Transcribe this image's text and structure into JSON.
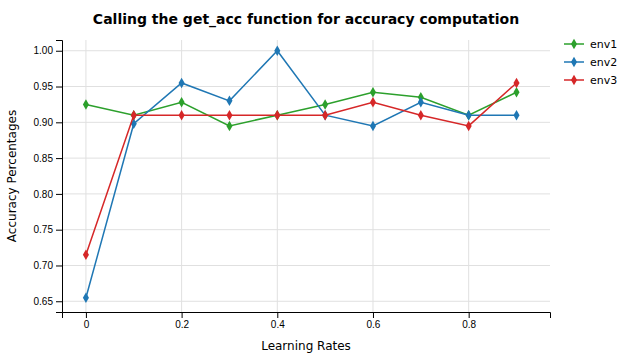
{
  "chart_data": {
    "type": "line",
    "title": "Calling the get_acc function for accuracy computation",
    "xlabel": "Learning Rates",
    "ylabel": "Accuracy Percentages",
    "x": [
      0.0,
      0.1,
      0.2,
      0.3,
      0.4,
      0.5,
      0.6,
      0.7,
      0.8,
      0.9
    ],
    "series": [
      {
        "name": "env1",
        "color": "#2ca02c",
        "marker": "diamond",
        "values": [
          0.925,
          0.91,
          0.928,
          0.895,
          0.91,
          0.925,
          0.942,
          0.935,
          0.91,
          0.942
        ]
      },
      {
        "name": "env2",
        "color": "#1f77b4",
        "marker": "diamond",
        "values": [
          0.655,
          0.898,
          0.955,
          0.93,
          1.0,
          0.91,
          0.895,
          0.928,
          0.91,
          0.91
        ]
      },
      {
        "name": "env3",
        "color": "#d62728",
        "marker": "diamond",
        "values": [
          0.715,
          0.91,
          0.91,
          0.91,
          0.91,
          0.91,
          0.928,
          0.91,
          0.895,
          0.955
        ]
      }
    ],
    "xlim": [
      -0.05,
      0.97
    ],
    "xticks": [
      0,
      0.2,
      0.4,
      0.6,
      0.8
    ],
    "ylim": [
      0.635,
      1.015
    ],
    "yticks": [
      0.65,
      {
        "value": 0.7,
        "label": "0.70"
      },
      0.75,
      {
        "value": 0.8,
        "label": "0.80"
      },
      0.85,
      {
        "value": 0.9,
        "label": "0.90"
      },
      0.95,
      {
        "value": 1.0,
        "label": "1.00"
      }
    ],
    "grid": true,
    "legend": "right"
  }
}
